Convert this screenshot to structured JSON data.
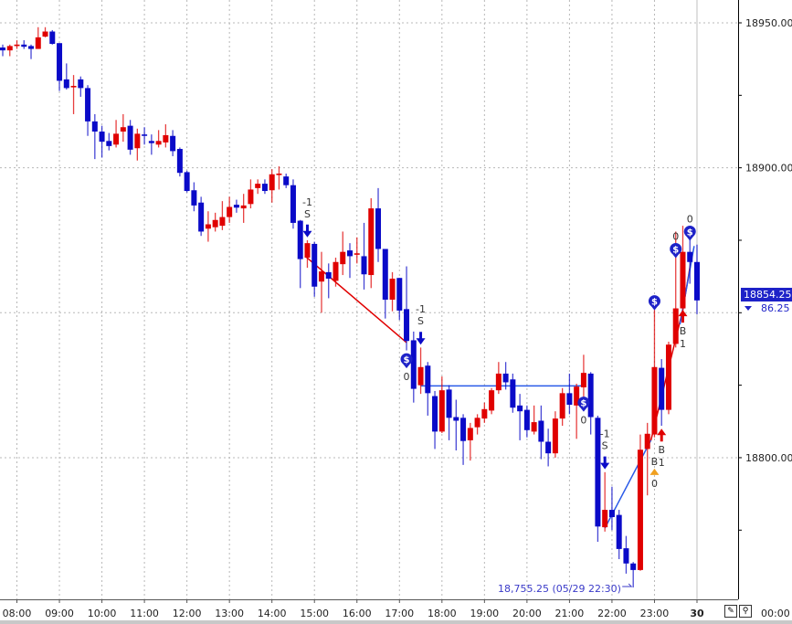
{
  "chart_data": {
    "type": "candlestick",
    "interval": "10 min",
    "ylim": [
      18745,
      18957.9
    ],
    "grid": true,
    "colors": {
      "up": "#e00000",
      "down": "#0a0ac8",
      "trade_up_line": "#e00000",
      "trade_down_line": "#2a5ae8",
      "price_box": "#1e22c8",
      "grid": "#b8b8b8"
    },
    "y_ticks": [
      {
        "value": 18950,
        "label": "18950.00"
      },
      {
        "value": 18900,
        "label": "18900.00"
      },
      {
        "value": 18850,
        "label": ""
      },
      {
        "value": 18800,
        "label": "18800.00"
      }
    ],
    "x_ticks": [
      {
        "time": "08:00",
        "label": "08:00"
      },
      {
        "time": "09:00",
        "label": "09:00"
      },
      {
        "time": "10:00",
        "label": "10:00"
      },
      {
        "time": "11:00",
        "label": "11:00"
      },
      {
        "time": "12:00",
        "label": "12:00"
      },
      {
        "time": "13:00",
        "label": "13:00"
      },
      {
        "time": "14:00",
        "label": "14:00"
      },
      {
        "time": "15:00",
        "label": "15:00"
      },
      {
        "time": "16:00",
        "label": "16:00"
      },
      {
        "time": "17:00",
        "label": "17:00"
      },
      {
        "time": "18:00",
        "label": "18:00"
      },
      {
        "time": "19:00",
        "label": "19:00"
      },
      {
        "time": "20:00",
        "label": "20:00"
      },
      {
        "time": "21:00",
        "label": "21:00"
      },
      {
        "time": "22:00",
        "label": "22:00"
      },
      {
        "time": "23:00",
        "label": "23:00"
      },
      {
        "time": "00:00",
        "label": "30",
        "day_boundary": true
      }
    ],
    "candles": [
      [
        "07:40",
        18941.5,
        18942.5,
        18938.5,
        18940.5
      ],
      [
        "07:50",
        18940.5,
        18942.5,
        18938.5,
        18942
      ],
      [
        "08:00",
        18942,
        18944,
        18941,
        18942.5
      ],
      [
        "08:10",
        18942.5,
        18944,
        18941,
        18941.75
      ],
      [
        "08:20",
        18942,
        18942.5,
        18937.5,
        18941
      ],
      [
        "08:30",
        18941,
        18948.5,
        18941,
        18945
      ],
      [
        "08:40",
        18945.25,
        18948.5,
        18945,
        18947
      ],
      [
        "08:50",
        18947,
        18947.5,
        18942.5,
        18942.75
      ],
      [
        "09:00",
        18943,
        18943,
        18926.5,
        18930
      ],
      [
        "09:10",
        18930.5,
        18936,
        18927,
        18927.5
      ],
      [
        "09:20",
        18927.75,
        18932,
        18918.5,
        18928.25
      ],
      [
        "09:30",
        18930.5,
        18931.5,
        18924.5,
        18927.5
      ],
      [
        "09:40",
        18927.5,
        18928.5,
        18911,
        18916
      ],
      [
        "09:50",
        18916,
        18918.5,
        18903,
        18912.5
      ],
      [
        "10:00",
        18912.5,
        18914.5,
        18903.5,
        18909
      ],
      [
        "10:10",
        18909.25,
        18912,
        18906,
        18907.5
      ],
      [
        "10:20",
        18908,
        18916.5,
        18907,
        18911.75
      ],
      [
        "10:30",
        18912.5,
        18918.5,
        18909,
        18914
      ],
      [
        "10:40",
        18914.5,
        18916.5,
        18904.5,
        18906.25
      ],
      [
        "10:50",
        18906.75,
        18913.5,
        18902.5,
        18911.75
      ],
      [
        "11:00",
        18911.5,
        18914,
        18908,
        18911
      ],
      [
        "11:10",
        18909.25,
        18911.5,
        18904.5,
        18908.5
      ],
      [
        "11:20",
        18908,
        18913,
        18907,
        18909.25
      ],
      [
        "11:30",
        18908.75,
        18915,
        18907,
        18911.25
      ],
      [
        "11:40",
        18911,
        18913,
        18904,
        18905.75
      ],
      [
        "11:50",
        18906.5,
        18907,
        18897,
        18898.25
      ],
      [
        "12:00",
        18898.5,
        18899,
        18891.5,
        18892
      ],
      [
        "12:10",
        18892.25,
        18895,
        18885,
        18887
      ],
      [
        "12:20",
        18888,
        18890,
        18876.5,
        18878
      ],
      [
        "12:30",
        18879,
        18885,
        18874.5,
        18880.5
      ],
      [
        "12:40",
        18879.5,
        18884.5,
        18878,
        18882
      ],
      [
        "12:50",
        18880,
        18888.5,
        18878.5,
        18883
      ],
      [
        "13:00",
        18883,
        18890,
        18881,
        18886.5
      ],
      [
        "13:10",
        18887.25,
        18889,
        18884.5,
        18886.25
      ],
      [
        "13:20",
        18886,
        18891,
        18881,
        18887
      ],
      [
        "13:30",
        18887.5,
        18896,
        18886,
        18892.5
      ],
      [
        "13:40",
        18893,
        18896,
        18891,
        18894.5
      ],
      [
        "13:50",
        18894.5,
        18896,
        18891,
        18892
      ],
      [
        "14:00",
        18892.25,
        18899.5,
        18888,
        18897.75
      ],
      [
        "14:10",
        18897.5,
        18900.5,
        18892.5,
        18898
      ],
      [
        "14:20",
        18897,
        18898,
        18893,
        18894
      ],
      [
        "14:30",
        18894,
        18896,
        18879,
        18881
      ],
      [
        "14:40",
        18881.75,
        18882,
        18858.5,
        18868.5
      ],
      [
        "14:50",
        18869,
        18875,
        18865.5,
        18874
      ],
      [
        "15:00",
        18873.75,
        18874.5,
        18855.5,
        18859
      ],
      [
        "15:10",
        18860.75,
        18871,
        18850,
        18864.25
      ],
      [
        "15:20",
        18864,
        18867,
        18855,
        18861.75
      ],
      [
        "15:30",
        18861,
        18869,
        18859,
        18867.5
      ],
      [
        "15:40",
        18866.75,
        18878,
        18863,
        18871
      ],
      [
        "15:50",
        18871.5,
        18874,
        18862,
        18869.5
      ],
      [
        "16:00",
        18870,
        18876,
        18867,
        18870.5
      ],
      [
        "16:10",
        18869.5,
        18881,
        18858,
        18863.25
      ],
      [
        "16:20",
        18863,
        18889.5,
        18858.5,
        18886
      ],
      [
        "16:30",
        18886,
        18893,
        18867.5,
        18872
      ],
      [
        "16:40",
        18872,
        18872,
        18848,
        18854.5
      ],
      [
        "16:50",
        18854.5,
        18864,
        18850.5,
        18861.75
      ],
      [
        "17:00",
        18862,
        18862,
        18847.5,
        18850.75
      ],
      [
        "17:10",
        18851.25,
        18866,
        18837,
        18840.25
      ],
      [
        "17:20",
        18840.5,
        18843.5,
        18819,
        18823.75
      ],
      [
        "17:30",
        18825,
        18838,
        18822,
        18831.25
      ],
      [
        "17:40",
        18831.75,
        18833,
        18814.5,
        18822.25
      ],
      [
        "17:50",
        18821.25,
        18823,
        18803,
        18809
      ],
      [
        "18:00",
        18809,
        18828,
        18808.5,
        18823.25
      ],
      [
        "18:10",
        18823.5,
        18825,
        18806,
        18813.75
      ],
      [
        "18:20",
        18814,
        18820,
        18802.5,
        18812.75
      ],
      [
        "18:30",
        18813.75,
        18815,
        18797.5,
        18805.75
      ],
      [
        "18:40",
        18806,
        18812,
        18799,
        18810.25
      ],
      [
        "18:50",
        18810.5,
        18815,
        18808,
        18813.75
      ],
      [
        "19:00",
        18813.5,
        18819,
        18812,
        18816.75
      ],
      [
        "19:10",
        18816.25,
        18824,
        18815,
        18823.25
      ],
      [
        "19:20",
        18823.25,
        18833,
        18822,
        18829
      ],
      [
        "19:30",
        18829,
        18833,
        18823.5,
        18826
      ],
      [
        "19:40",
        18827,
        18829,
        18815.5,
        18817.25
      ],
      [
        "19:50",
        18818,
        18822,
        18806,
        18816
      ],
      [
        "20:00",
        18816.5,
        18818,
        18807,
        18809.5
      ],
      [
        "20:10",
        18809,
        18818,
        18808,
        18812.25
      ],
      [
        "20:20",
        18812.75,
        18818,
        18799.5,
        18805.5
      ],
      [
        "20:30",
        18805.5,
        18810,
        18797,
        18801.5
      ],
      [
        "20:40",
        18801.5,
        18816,
        18800,
        18813.5
      ],
      [
        "20:50",
        18813.5,
        18824,
        18811,
        18822.25
      ],
      [
        "21:00",
        18822.25,
        18829,
        18815,
        18818.25
      ],
      [
        "21:10",
        18818,
        18825.5,
        18806.5,
        18824.5
      ],
      [
        "21:20",
        18824.25,
        18835.5,
        18820,
        18829.25
      ],
      [
        "21:30",
        18829,
        18829.5,
        18808,
        18814
      ],
      [
        "21:40",
        18813.75,
        18814.5,
        18771,
        18776.25
      ],
      [
        "21:50",
        18776,
        18795,
        18774.5,
        18782
      ],
      [
        "22:00",
        18782,
        18790,
        18775,
        18779.5
      ],
      [
        "22:10",
        18780.25,
        18782,
        18765,
        18768.5
      ],
      [
        "22:20",
        18768.75,
        18773,
        18760,
        18763.5
      ],
      [
        "22:30",
        18763.5,
        18764,
        18755.25,
        18761.25
      ],
      [
        "22:40",
        18761.25,
        18808,
        18761,
        18802.75
      ],
      [
        "22:50",
        18803,
        18812,
        18787,
        18808.25
      ],
      [
        "23:00",
        18808,
        18851,
        18807,
        18831.25
      ],
      [
        "23:10",
        18831,
        18834,
        18811,
        18816.5
      ],
      [
        "23:20",
        18816.5,
        18840,
        18815,
        18839
      ],
      [
        "23:30",
        18839.25,
        18878,
        18838,
        18851.5
      ],
      [
        "23:40",
        18851.5,
        18880,
        18850,
        18871
      ],
      [
        "23:50",
        18871,
        18880,
        18860,
        18867.5
      ],
      [
        "00:00",
        18867.5,
        18873.5,
        18849.5,
        18854.25
      ]
    ],
    "signals": [
      {
        "kind": "sell",
        "time": "14:50",
        "price": 18876,
        "side_label": "S",
        "qty_label": "-1"
      },
      {
        "kind": "sell",
        "time": "17:30",
        "price": 18839,
        "side_label": "S",
        "qty_label": "-1"
      },
      {
        "kind": "sell",
        "time": "21:50",
        "price": 18796,
        "side_label": "S",
        "qty_label": "-1"
      },
      {
        "kind": "buy",
        "time": "23:10",
        "price": 18810,
        "side_label": "B",
        "qty_label": "1"
      },
      {
        "kind": "buy",
        "time": "23:40",
        "price": 18851,
        "side_label": "B",
        "qty_label": "1"
      }
    ],
    "exits": [
      {
        "time": "17:10",
        "price": 18834,
        "qty_label": "0",
        "label_pos": "below",
        "symbol": "$"
      },
      {
        "time": "21:20",
        "price": 18819,
        "qty_label": "0",
        "label_pos": "below",
        "symbol": "$"
      },
      {
        "time": "23:00",
        "price": 18854,
        "qty_label": "",
        "label_pos": "none",
        "symbol": "$"
      },
      {
        "time": "23:30",
        "price": 18872,
        "qty_label": "0",
        "label_pos": "above",
        "symbol": "$"
      },
      {
        "time": "23:50",
        "price": 18878,
        "qty_label": "0",
        "label_pos": "above",
        "symbol": "$"
      }
    ],
    "alerts": [
      {
        "time": "23:00",
        "price": 18795,
        "side_label": "B",
        "qty_label": "0",
        "color": "#f0a020"
      }
    ],
    "trade_lines": [
      {
        "color": "#e00000",
        "points": [
          [
            "14:47",
            18869.5
          ],
          [
            "17:10",
            18839.7
          ]
        ]
      },
      {
        "color": "#2a5ae8",
        "points": [
          [
            "17:30",
            18824.75
          ],
          [
            "21:20",
            18824.75
          ]
        ]
      },
      {
        "color": "#2a5ae8",
        "points": [
          [
            "21:50",
            18775.7
          ],
          [
            "22:55",
            18806
          ]
        ]
      },
      {
        "color": "#e00000",
        "points": [
          [
            "22:55",
            18806
          ],
          [
            "23:40",
            18851
          ],
          [
            "23:53",
            18870
          ]
        ]
      },
      {
        "color": "#2a5ae8",
        "points": [
          [
            "23:36",
            18846
          ],
          [
            "23:56",
            18873
          ]
        ]
      }
    ],
    "last_price": {
      "value": "18854.25",
      "change": "86.25"
    },
    "low_annotation": {
      "text": "18,755.25 (05/29 22:30)",
      "price": 18755.25
    }
  },
  "footer": {
    "time_readout": "00:00",
    "draw_tool_icon": "pencil-icon",
    "zoom_tool_icon": "magnifier-icon"
  }
}
